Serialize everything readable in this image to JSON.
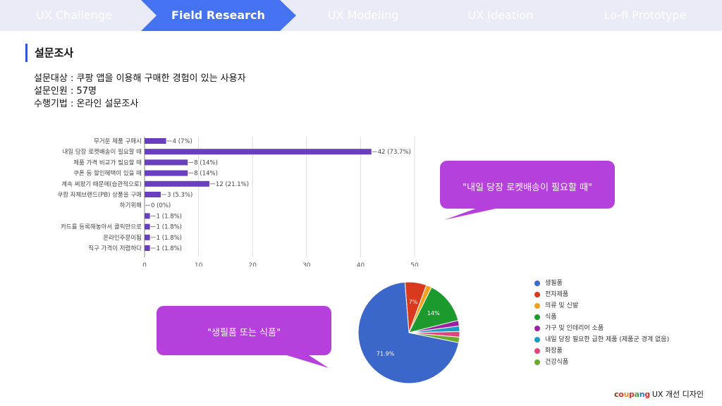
{
  "nav": {
    "steps": [
      "UX Challenge",
      "Field Research",
      "UX Modeling",
      "UX Ideation",
      "Lo-fi Prototype"
    ],
    "active_index": 1,
    "colors": {
      "bar": "#e9ecf6",
      "active": "#4472f0",
      "inactive_text": "#ffffff"
    }
  },
  "section": {
    "title": "설문조사"
  },
  "survey_info": {
    "target": "설문대상 : 쿠팡 앱을 이용해 구매한 경험이 있는 사용자",
    "respondents": "설문인원 : 57명",
    "method": "수행기법 : 온라인 설문조사"
  },
  "callouts": {
    "top": "\"내일 당장 로켓배송이 필요할 때\"",
    "bottom": "\"생필품 또는 식품\"",
    "color": "#b540dc"
  },
  "chart_data": [
    {
      "type": "bar",
      "orientation": "horizontal",
      "categories": [
        "무거운 제품 구매시",
        "내일 당장 로켓배송이 필요할 때",
        "제품 가격 비교가 필요할 때",
        "쿠폰 등 할인혜택이 있을 때",
        "계속 써왔기 때문에(습관적으로)",
        "쿠팡 자체브랜드(PB) 상품을 구매",
        "하기위해",
        "",
        "카드를 등록해놓아서 클릭만으로",
        "온라인주문이됨",
        "직구 가격이 저렴하다"
      ],
      "values": [
        4,
        42,
        8,
        8,
        12,
        3,
        0,
        1,
        1,
        1,
        1
      ],
      "data_labels": [
        "4 (7%)",
        "42 (73.7%)",
        "8 (14%)",
        "8 (14%)",
        "12 (21.1%)",
        "3 (5.3%)",
        "0 (0%)",
        "1 (1.8%)",
        "1 (1.8%)",
        "1 (1.8%)",
        "1 (1.8%)"
      ],
      "xlim": [
        0,
        50
      ],
      "xticks": [
        "0",
        "10",
        "20",
        "30",
        "40",
        "50"
      ],
      "grid": true,
      "color": "#6a3fbf"
    },
    {
      "type": "pie",
      "categories": [
        "생필품",
        "전자제품",
        "의류 및 신발",
        "식품",
        "가구 및 인테리어 소품",
        "내일 당장 필요한 급한 제품 (제품군 경계 없음)",
        "화장품",
        "건강식품"
      ],
      "values": [
        71.9,
        7,
        1.8,
        14,
        1.8,
        1.8,
        1.8,
        1.8
      ],
      "slice_labels": [
        "71.9%",
        "7%",
        "",
        "14%",
        "",
        "",
        "",
        ""
      ],
      "colors": [
        "#3a67c9",
        "#d93a1f",
        "#f0a21c",
        "#1d9a2e",
        "#9a1fa3",
        "#1a9cc4",
        "#e0447a",
        "#6aab2a"
      ],
      "legend_position": "right"
    }
  ],
  "footer": {
    "brand": "coupang",
    "subtitle": "UX 개선 디자인"
  }
}
